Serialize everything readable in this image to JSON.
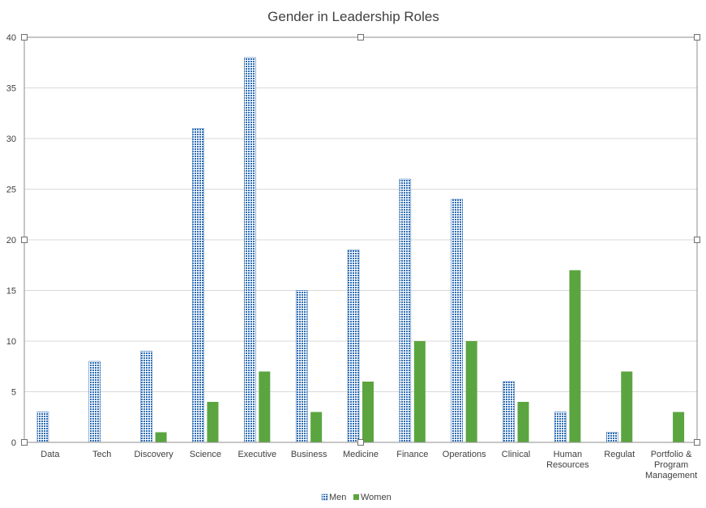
{
  "chart_data": {
    "type": "bar",
    "title": "Gender in Leadership Roles",
    "xlabel": "",
    "ylabel": "",
    "ylim": [
      0,
      40
    ],
    "yticks": [
      0,
      5,
      10,
      15,
      20,
      25,
      30,
      35,
      40
    ],
    "grid": true,
    "legend_position": "bottom",
    "categories": [
      "Data",
      "Tech",
      "Discovery",
      "Science",
      "Executive",
      "Business",
      "Medicine",
      "Finance",
      "Operations",
      "Clinical",
      "Human Resources",
      "Regulat",
      "Portfolio & Program Management"
    ],
    "series": [
      {
        "name": "Men",
        "color": "#2E6DB4",
        "pattern": "dotted",
        "values": [
          3,
          8,
          9,
          31,
          38,
          15,
          19,
          26,
          24,
          6,
          3,
          1,
          0
        ]
      },
      {
        "name": "Women",
        "color": "#5BA540",
        "pattern": "solid",
        "values": [
          0,
          0,
          1,
          4,
          7,
          3,
          6,
          10,
          10,
          4,
          17,
          7,
          3
        ]
      }
    ]
  }
}
